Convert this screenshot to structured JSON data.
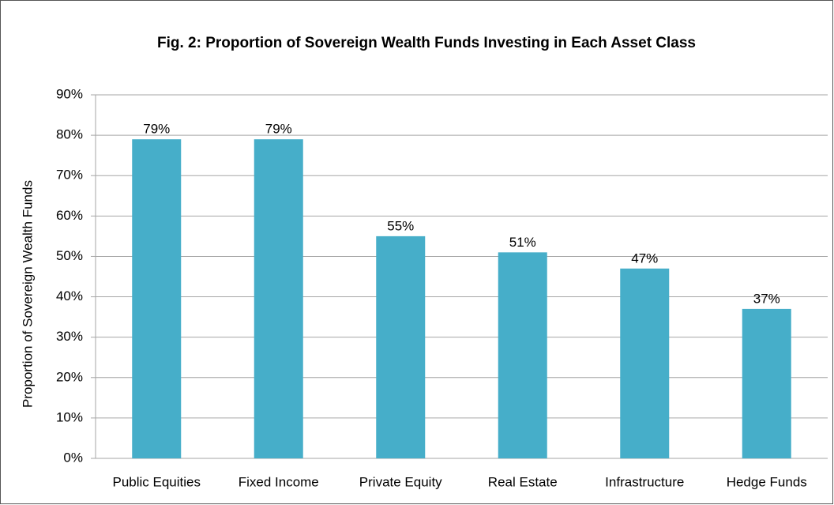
{
  "chart_data": {
    "type": "bar",
    "title": "Fig. 2: Proportion of Sovereign Wealth Funds Investing in Each Asset Class",
    "y_label": "Proportion of Sovereign Wealth Funds",
    "categories": [
      "Public Equities",
      "Fixed Income",
      "Private Equity",
      "Real Estate",
      "Infrastructure",
      "Hedge Funds"
    ],
    "values": [
      79,
      79,
      55,
      51,
      47,
      37
    ],
    "value_labels": [
      "79%",
      "79%",
      "55%",
      "51%",
      "47%",
      "37%"
    ],
    "color": "#46aec9",
    "ylim": [
      0,
      90
    ],
    "yticks": [
      {
        "value": 0,
        "label": "0%"
      },
      {
        "value": 10,
        "label": "10%"
      },
      {
        "value": 20,
        "label": "20%"
      },
      {
        "value": 30,
        "label": "30%"
      },
      {
        "value": 40,
        "label": "40%"
      },
      {
        "value": 50,
        "label": "50%"
      },
      {
        "value": 60,
        "label": "60%"
      },
      {
        "value": 70,
        "label": "70%"
      },
      {
        "value": 80,
        "label": "80%"
      },
      {
        "value": 90,
        "label": "90%"
      }
    ],
    "grid": true
  }
}
